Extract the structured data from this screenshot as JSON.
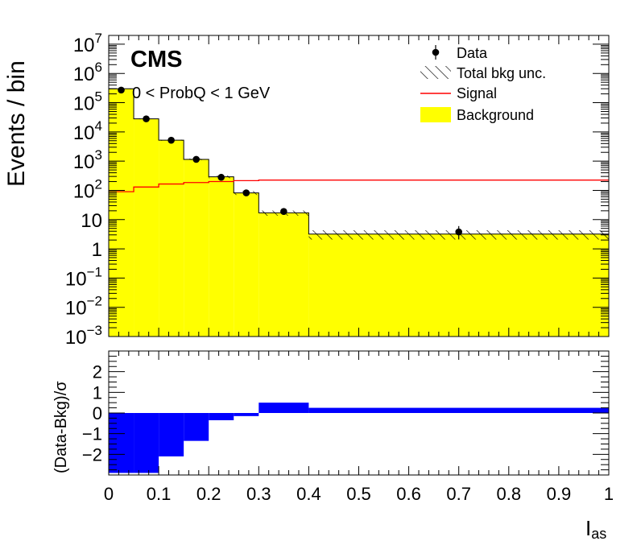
{
  "chart_data": [
    {
      "type": "bar",
      "panel": "main",
      "experiment_label": "CMS",
      "selection": "0 < ProbQ < 1 GeV",
      "ylabel": "Events / bin",
      "yscale": "log",
      "ylim": [
        0.001,
        20000000
      ],
      "xlim": [
        0,
        1
      ],
      "y_tick_labels": [
        {
          "value": 0.001,
          "base": "10",
          "exp": "−3"
        },
        {
          "value": 0.01,
          "base": "10",
          "exp": "−2"
        },
        {
          "value": 0.1,
          "base": "10",
          "exp": "−1"
        },
        {
          "value": 1,
          "base": "1",
          "exp": ""
        },
        {
          "value": 10,
          "base": "10",
          "exp": ""
        },
        {
          "value": 100,
          "base": "10",
          "exp": "2"
        },
        {
          "value": 1000,
          "base": "10",
          "exp": "3"
        },
        {
          "value": 10000,
          "base": "10",
          "exp": "4"
        },
        {
          "value": 100000,
          "base": "10",
          "exp": "5"
        },
        {
          "value": 1000000,
          "base": "10",
          "exp": "6"
        },
        {
          "value": 10000000,
          "base": "10",
          "exp": "7"
        }
      ],
      "bin_edges": [
        0,
        0.05,
        0.1,
        0.15,
        0.2,
        0.25,
        0.3,
        0.4,
        1.0
      ],
      "background": [
        300000,
        28000,
        5200,
        1150,
        290,
        82,
        17,
        3.2
      ],
      "background_uncertainty_relative": [
        0.02,
        0.03,
        0.04,
        0.06,
        0.1,
        0.15,
        0.2,
        0.35
      ],
      "signal": [
        90,
        130,
        165,
        185,
        200,
        215,
        225,
        225
      ],
      "data": [
        {
          "x": 0.025,
          "y": 270000
        },
        {
          "x": 0.075,
          "y": 28000
        },
        {
          "x": 0.125,
          "y": 5200
        },
        {
          "x": 0.175,
          "y": 1150
        },
        {
          "x": 0.225,
          "y": 280
        },
        {
          "x": 0.275,
          "y": 82
        },
        {
          "x": 0.35,
          "y": 19
        },
        {
          "x": 0.7,
          "y": 3.8,
          "err_low": 1.7,
          "err_high": 2.2
        }
      ],
      "legend": {
        "position": "top-right",
        "entries": [
          {
            "label": "Data",
            "kind": "marker"
          },
          {
            "label": "Total bkg unc.",
            "kind": "hatch"
          },
          {
            "label": "Signal",
            "kind": "line"
          },
          {
            "label": "Background",
            "kind": "fill"
          }
        ]
      },
      "colors": {
        "background": "#ffff00",
        "signal": "#ff0000",
        "data": "#000000",
        "hatch": "#000000"
      }
    },
    {
      "type": "bar",
      "panel": "ratio",
      "ylabel": "(Data-Bkg)/σ",
      "xlabel_base": "I",
      "xlabel_sub": "as",
      "ylim": [
        -3,
        3
      ],
      "xlim": [
        0,
        1
      ],
      "bin_edges": [
        0,
        0.05,
        0.1,
        0.15,
        0.2,
        0.25,
        0.3,
        0.4,
        1.0
      ],
      "values": [
        -2.9,
        -2.9,
        -2.1,
        -1.35,
        -0.35,
        -0.15,
        0.5,
        0.25
      ],
      "y_tick_labels": [
        "−2",
        "−1",
        "0",
        "1",
        "2"
      ],
      "y_tick_values": [
        -2,
        -1,
        0,
        1,
        2
      ],
      "x_tick_labels": [
        "0",
        "0.1",
        "0.2",
        "0.3",
        "0.4",
        "0.5",
        "0.6",
        "0.7",
        "0.8",
        "0.9",
        "1"
      ],
      "x_tick_values": [
        0,
        0.1,
        0.2,
        0.3,
        0.4,
        0.5,
        0.6,
        0.7,
        0.8,
        0.9,
        1.0
      ],
      "colors": {
        "fill": "#0000ff"
      }
    }
  ]
}
